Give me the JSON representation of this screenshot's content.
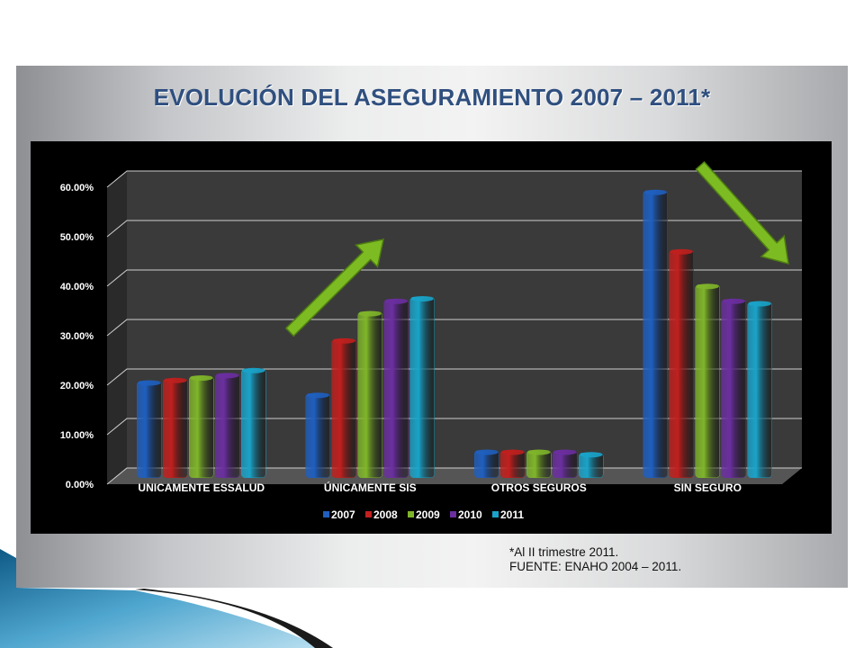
{
  "slide": {
    "title": "EVOLUCIÓN DEL ASEGURAMIENTO 2007 – 2011*",
    "footnote": "*Al II trimestre 2011.",
    "source": "FUENTE: ENAHO 2004 – 2011."
  },
  "colors": {
    "series": [
      "#1f5fbf",
      "#c0201e",
      "#7fb52a",
      "#6b2fa0",
      "#1aa3c9"
    ],
    "arrow": "#7dbb22",
    "chart_background": "#000000",
    "plot_wall": "#3a3a3a"
  },
  "chart_data": {
    "type": "bar",
    "title": "",
    "xlabel": "",
    "ylabel": "",
    "categories": [
      "UNICAMENTE ESSALUD",
      "ÚNICAMENTE SIS",
      "OTROS SEGUROS",
      "SIN SEGURO"
    ],
    "series": [
      {
        "name": "2007",
        "values": [
          19.5,
          17.0,
          5.5,
          58.0
        ]
      },
      {
        "name": "2008",
        "values": [
          20.0,
          28.0,
          5.5,
          46.0
        ]
      },
      {
        "name": "2009",
        "values": [
          20.5,
          33.5,
          5.5,
          39.0
        ]
      },
      {
        "name": "2010",
        "values": [
          21.0,
          36.0,
          5.5,
          36.0
        ]
      },
      {
        "name": "2011",
        "values": [
          22.0,
          36.5,
          5.0,
          35.5
        ]
      }
    ],
    "ylim": [
      0,
      60
    ],
    "yticks": [
      "0.00%",
      "10.00%",
      "20.00%",
      "30.00%",
      "40.00%",
      "50.00%",
      "60.00%"
    ],
    "grid": true,
    "legend_position": "bottom",
    "annotations": [
      {
        "type": "arrow",
        "direction": "up",
        "category": "ÚNICAMENTE SIS"
      },
      {
        "type": "arrow",
        "direction": "down",
        "category": "SIN SEGURO"
      }
    ]
  }
}
